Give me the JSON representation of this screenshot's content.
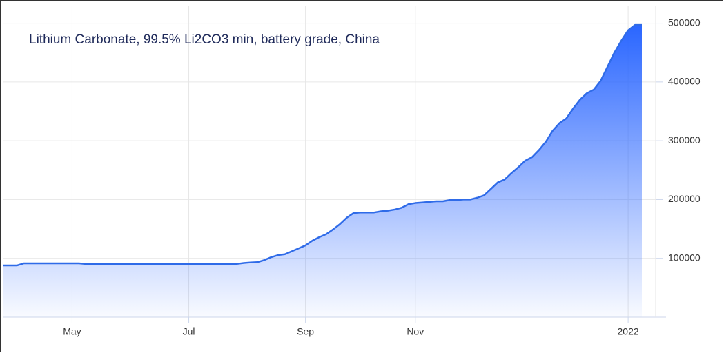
{
  "chart_data": {
    "type": "area",
    "title": "Lithium Carbonate, 99.5% Li2CO3 min, battery grade, China",
    "categories": [
      null,
      null,
      null,
      null,
      null,
      null,
      null,
      null,
      null,
      null,
      "May",
      null,
      null,
      null,
      null,
      null,
      null,
      null,
      null,
      null,
      null,
      null,
      null,
      null,
      null,
      null,
      null,
      "Jul",
      null,
      null,
      null,
      null,
      null,
      null,
      null,
      null,
      null,
      null,
      null,
      null,
      null,
      null,
      null,
      null,
      "Sep",
      null,
      null,
      null,
      null,
      null,
      null,
      null,
      null,
      null,
      null,
      null,
      null,
      null,
      null,
      null,
      "Nov",
      null,
      null,
      null,
      null,
      null,
      null,
      null,
      null,
      null,
      null,
      null,
      null,
      null,
      null,
      null,
      null,
      null,
      null,
      null,
      null,
      null,
      null,
      null,
      null,
      null,
      null,
      null,
      null,
      null,
      null,
      "2022",
      null,
      null
    ],
    "values": [
      88000,
      88000,
      88000,
      91500,
      91500,
      91500,
      91500,
      91500,
      91500,
      91500,
      91500,
      91500,
      90500,
      90500,
      90500,
      90500,
      90500,
      90500,
      90500,
      90500,
      90500,
      90500,
      90500,
      90500,
      90500,
      90500,
      90500,
      90500,
      90500,
      90500,
      90500,
      90500,
      90500,
      90500,
      90500,
      92000,
      93000,
      93500,
      97000,
      102000,
      105500,
      107000,
      112000,
      117000,
      122000,
      130000,
      136000,
      141000,
      149000,
      158000,
      169000,
      177000,
      178000,
      178000,
      178000,
      180000,
      181000,
      183000,
      186000,
      192000,
      194000,
      195000,
      196000,
      197000,
      197000,
      199000,
      199000,
      200000,
      200000,
      203000,
      207000,
      218000,
      229000,
      234000,
      245000,
      255000,
      266000,
      272000,
      284000,
      298000,
      317000,
      330000,
      338000,
      355000,
      370000,
      381000,
      387000,
      402000,
      426000,
      450000,
      470000,
      488000,
      497000,
      497000
    ],
    "color": "#2f6be8",
    "ylim": [
      0,
      530000
    ],
    "yticks": [
      100000,
      200000,
      300000,
      400000,
      500000
    ],
    "grid": true
  }
}
